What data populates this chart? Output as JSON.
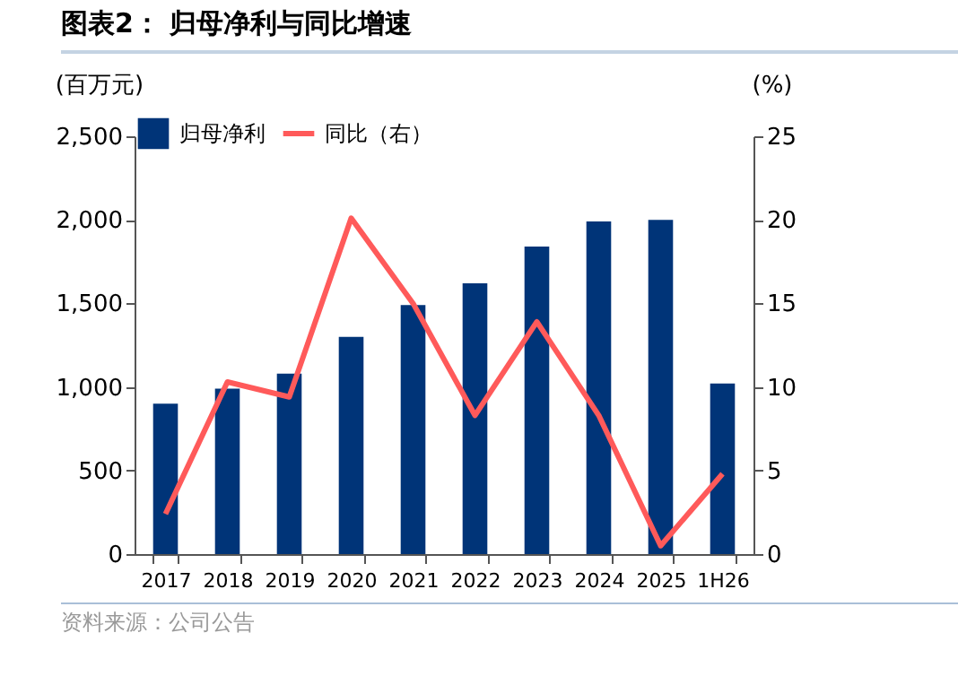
{
  "chart_data": {
    "type": "bar",
    "title": "图表2：  归母净利与同比增速",
    "categories": [
      "2017",
      "2018",
      "2019",
      "2020",
      "2021",
      "2022",
      "2023",
      "2024",
      "2025",
      "1H26"
    ],
    "series": [
      {
        "name": "归母净利",
        "color": "#003478",
        "values": [
          900,
          990,
          1080,
          1300,
          1490,
          1620,
          1840,
          1990,
          2000,
          1020
        ]
      },
      {
        "name": "同比（右）",
        "type": "line",
        "axis": "y2",
        "color": "#ff5a5a",
        "values": [
          2.4,
          10.3,
          9.4,
          20.1,
          15.0,
          8.3,
          13.9,
          8.3,
          0.5,
          4.8
        ]
      }
    ],
    "ylabel": "(百万元)",
    "y2label": "(%)",
    "ylim": [
      0,
      2500
    ],
    "yticks": [
      0,
      500,
      {
        "value": 1000,
        "label": "1,000"
      },
      {
        "value": 1500,
        "label": "1,500"
      },
      {
        "value": 2000,
        "label": "2,000"
      },
      {
        "value": 2500,
        "label": "2,500"
      }
    ],
    "y2lim": [
      0,
      25
    ],
    "y2ticks": [
      0,
      5,
      10,
      15,
      20,
      25
    ],
    "legend": "top",
    "annotations": [
      "资料来源：公司公告"
    ]
  }
}
